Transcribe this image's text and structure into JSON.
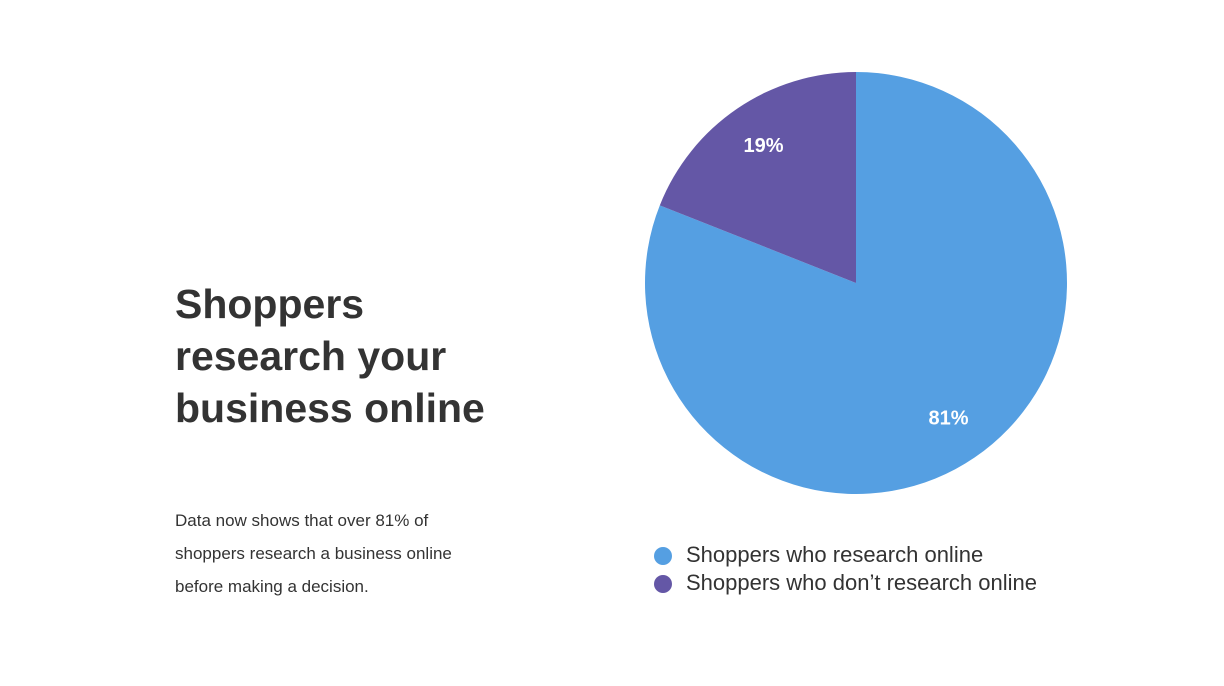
{
  "heading": "Shoppers research your business online",
  "body": "Data now shows that over 81% of shoppers research a business online before making a decision.",
  "chart_data": {
    "type": "pie",
    "categories": [
      "Shoppers who research online",
      "Shoppers who don’t research online"
    ],
    "values": [
      81,
      19
    ],
    "value_labels": [
      "81%",
      "19%"
    ],
    "colors": [
      "#559fe2",
      "#6457a6"
    ]
  }
}
